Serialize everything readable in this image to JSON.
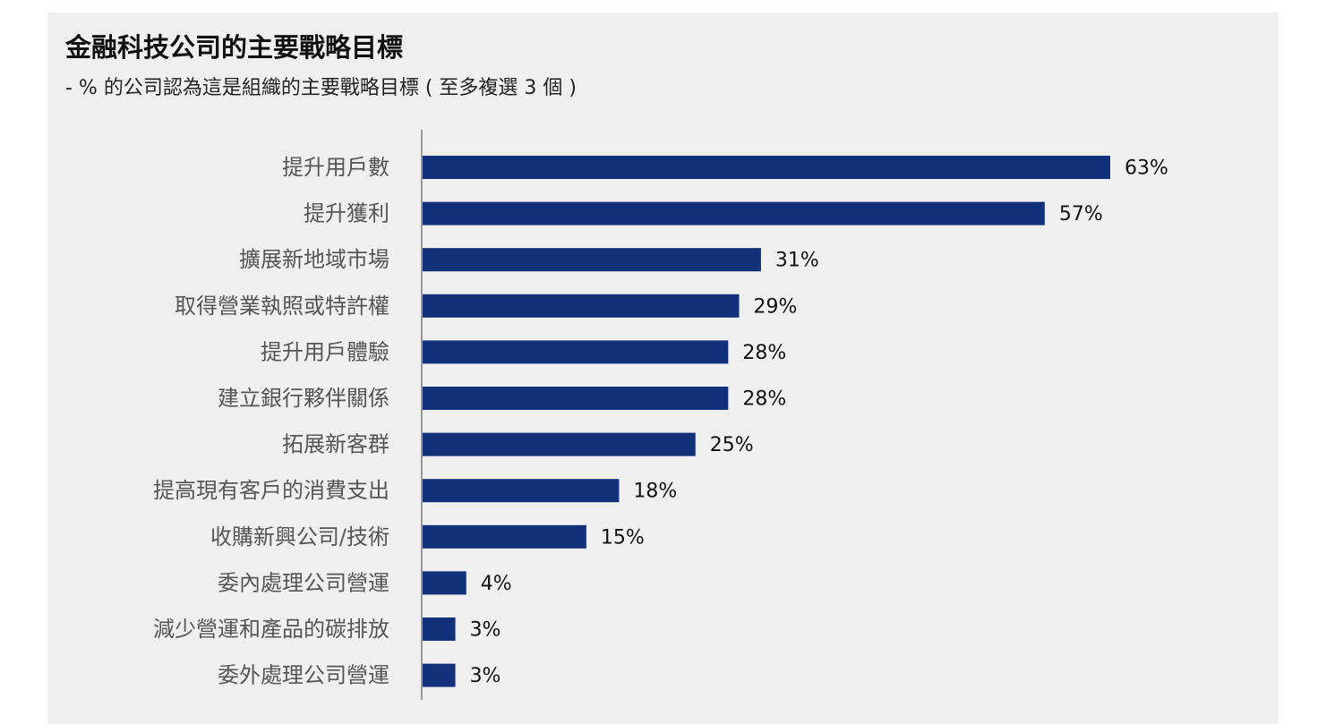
{
  "chart_data": {
    "type": "bar",
    "orientation": "horizontal",
    "title": "金融科技公司的主要戰略目標",
    "subtitle": "- % 的公司認為這是組織的主要戰略目標 ( 至多複選 3 個 )",
    "categories": [
      "提升用戶數",
      "提升獲利",
      "擴展新地域市場",
      "取得營業執照或特許權",
      "提升用戶體驗",
      "建立銀行夥伴關係",
      "拓展新客群",
      "提高現有客戶的消費支出",
      "收購新興公司/技術",
      "委內處理公司營運",
      "減少營運和產品的碳排放",
      "委外處理公司營運"
    ],
    "values": [
      63,
      57,
      31,
      29,
      28,
      28,
      25,
      18,
      15,
      4,
      3,
      3
    ],
    "value_labels": [
      "63%",
      "57%",
      "31%",
      "29%",
      "28%",
      "28%",
      "25%",
      "18%",
      "15%",
      "4%",
      "3%",
      "3%"
    ],
    "unit": "%",
    "xlim": [
      0,
      63
    ],
    "grid": false,
    "legend": "none",
    "colors": {
      "bar": "#12317a",
      "background": "#efefef",
      "axis": "#999999"
    }
  }
}
